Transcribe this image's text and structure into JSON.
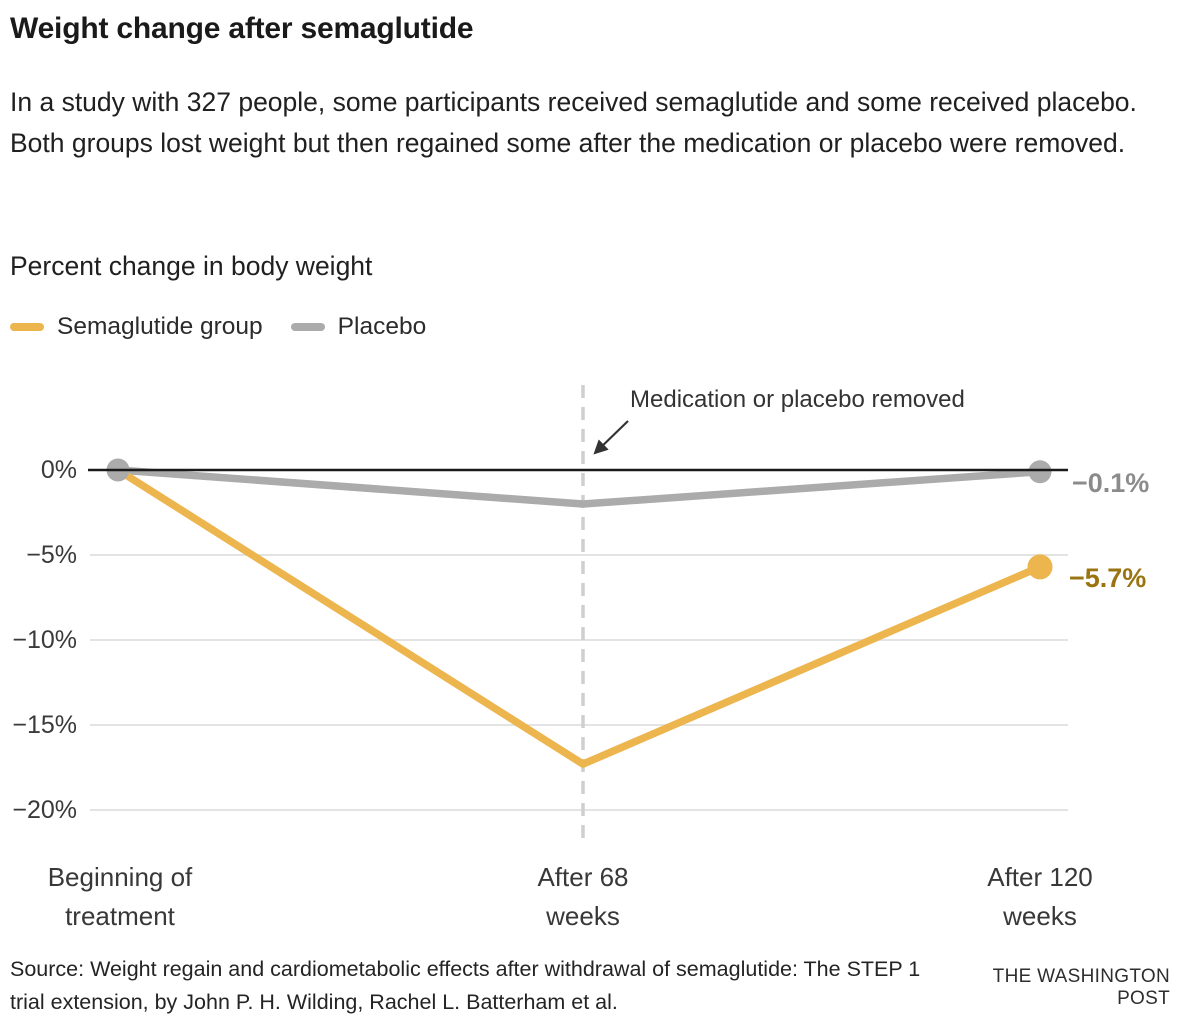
{
  "header": {
    "title": "Weight change after semaglutide",
    "description": "In a study with 327 people, some participants received semaglutide and some received placebo. Both groups lost weight but then regained some after the medication or placebo were removed."
  },
  "chart_data": {
    "type": "line",
    "title": "Percent change in body weight",
    "x_categories": [
      "Beginning of\ntreatment",
      "After 68\nweeks",
      "After 120\nweeks"
    ],
    "series": [
      {
        "name": "Semaglutide group",
        "values": [
          0,
          -17.3,
          -5.7
        ],
        "color": "#ecb54e",
        "end_label": "−5.7%",
        "end_label_color": "#9a7411"
      },
      {
        "name": "Placebo",
        "values": [
          0,
          -2.0,
          -0.1
        ],
        "color": "#ababab",
        "end_label": "−0.1%",
        "end_label_color": "#8b8b8b"
      }
    ],
    "yticks": [
      0,
      -5,
      -10,
      -15,
      -20
    ],
    "ytick_labels": [
      "0%",
      "−5%",
      "−10%",
      "−15%",
      "−20%"
    ],
    "ylim": [
      -21.5,
      0.5
    ],
    "grid": "horizontal",
    "legend_position": "top-left",
    "annotation": "Medication or placebo removed",
    "annotation_target_x": "After 68 weeks",
    "zero_line_color": "#1a1a1a",
    "gridline_color": "#e3e3e3",
    "dashed_line_color": "#cfcfcf"
  },
  "footer": {
    "source": "Source: Weight regain and cardiometabolic effects after withdrawal of semaglutide: The STEP 1 trial extension, by John P. H. Wilding, Rachel L. Batterham et al.",
    "brand": "THE WASHINGTON POST"
  }
}
